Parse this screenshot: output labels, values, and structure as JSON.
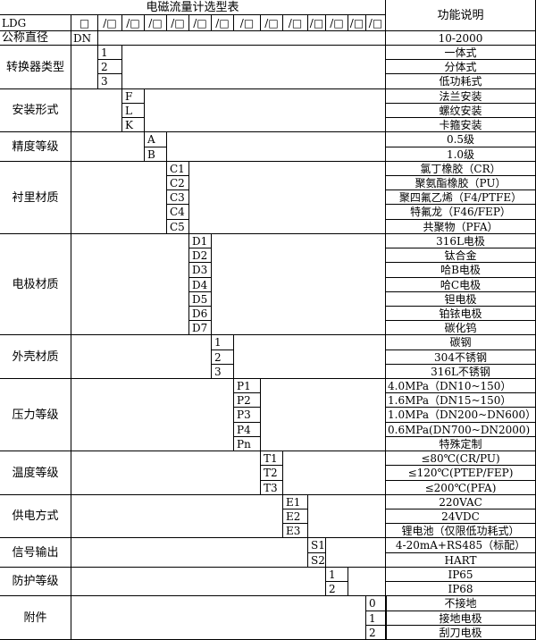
{
  "title": "电磁流量计选型表",
  "function_header": "功能说明",
  "model_row": {
    "prefix": "LDG",
    "slots": [
      "□",
      "/□",
      "/□",
      "/□",
      "/□",
      "/□",
      "/□",
      "/□",
      "/□",
      "/□",
      "/□",
      "/□",
      "/□",
      "/□"
    ]
  },
  "nominal_diameter": {
    "label": "公称直径",
    "code": "DN",
    "description": "10-2000"
  },
  "groups": [
    {
      "label": "转换器类型",
      "codes": [
        "1",
        "2",
        "3"
      ],
      "descriptions": [
        "一体式",
        "分体式",
        "低功耗式"
      ]
    },
    {
      "label": "安装形式",
      "codes": [
        "F",
        "L",
        "K"
      ],
      "descriptions": [
        "法兰安装",
        "螺纹安装",
        "卡箍安装"
      ]
    },
    {
      "label": "精度等级",
      "codes": [
        "A",
        "B"
      ],
      "descriptions": [
        "0.5级",
        "1.0级"
      ]
    },
    {
      "label": "衬里材质",
      "codes": [
        "C1",
        "C2",
        "C3",
        "C4",
        "C5"
      ],
      "descriptions": [
        "氯丁橡胶（CR）",
        "聚氨酯橡胶（PU）",
        "聚四氟乙烯（F4/PTFE）",
        "特氟龙（F46/FEP）",
        "共聚物（PFA）"
      ]
    },
    {
      "label": "电极材质",
      "codes": [
        "D1",
        "D2",
        "D3",
        "D4",
        "D5",
        "D6",
        "D7"
      ],
      "descriptions": [
        "316L电极",
        "钛合金",
        "哈B电极",
        "哈C电极",
        "钽电极",
        "铂铱电极",
        "碳化钨"
      ]
    },
    {
      "label": "外壳材质",
      "codes": [
        "1",
        "2",
        "3"
      ],
      "descriptions": [
        "碳钢",
        "304不锈钢",
        "316L不锈钢"
      ]
    },
    {
      "label": "压力等级",
      "codes": [
        "P1",
        "P2",
        "P3",
        "P4",
        "Pn"
      ],
      "descriptions": [
        "4.0MPa（DN10~150）",
        "1.6MPa（DN15~150）",
        "1.0MPa（DN200~DN600）",
        "0.6MPa(DN700~DN2000)",
        "特殊定制"
      ]
    },
    {
      "label": "温度等级",
      "codes": [
        "T1",
        "T2",
        "T3"
      ],
      "descriptions": [
        "≤80℃(CR/PU)",
        "≤120℃(PTEP/FEP)",
        "≤200℃(PFA)"
      ]
    },
    {
      "label": "供电方式",
      "codes": [
        "E1",
        "E2",
        "E3"
      ],
      "descriptions": [
        "220VAC",
        "24VDC",
        "锂电池（仅限低功耗式）"
      ]
    },
    {
      "label": "信号输出",
      "codes": [
        "S1",
        "S2"
      ],
      "descriptions": [
        "4-20mA+RS485（标配）",
        "HART"
      ]
    },
    {
      "label": "防护等级",
      "codes": [
        "1",
        "2"
      ],
      "descriptions": [
        "IP65",
        "IP68"
      ]
    },
    {
      "label": "附件",
      "codes": [
        "0",
        "1",
        "2"
      ],
      "descriptions": [
        "不接地",
        "接地电极",
        "刮刀电极"
      ]
    }
  ]
}
